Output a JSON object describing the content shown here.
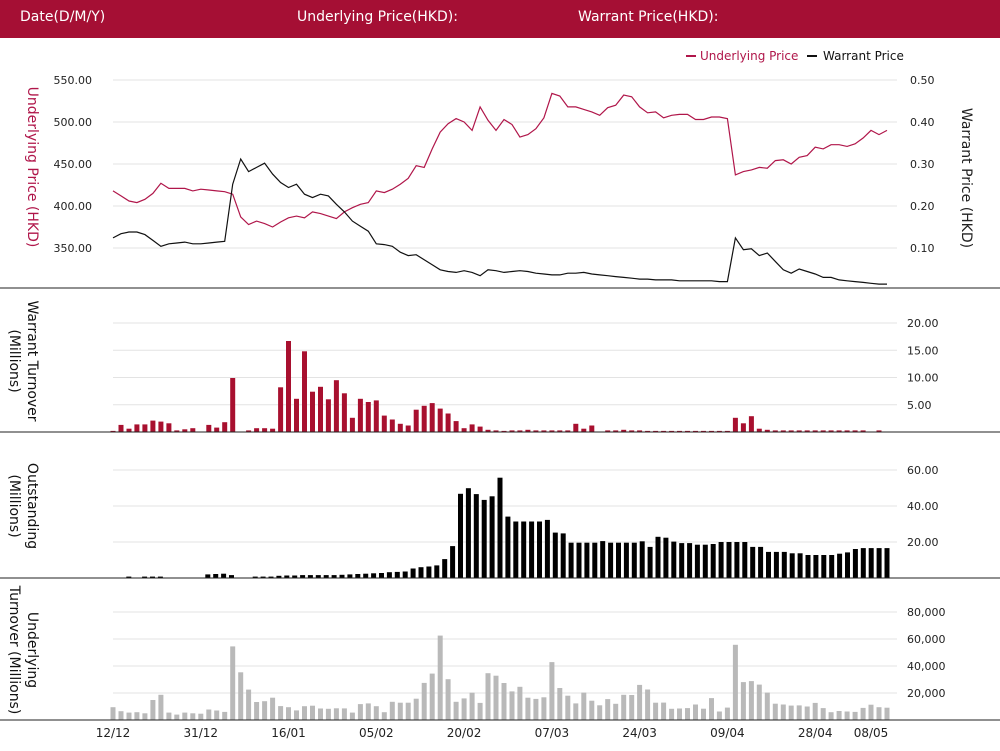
{
  "header": {
    "date_label": "Date(D/M/Y)",
    "underlying_label": "Underlying Price(HKD):",
    "warrant_label": "Warrant Price(HKD):"
  },
  "colors": {
    "header_bg": "#a50f34",
    "underlying": "#b0164a",
    "warrant": "#111111",
    "warrant_turnover_bar": "#a8102f",
    "outstanding_bar": "#000000",
    "underlying_turnover_bar": "#b9b9b9",
    "grid": "#e3e3e3"
  },
  "chart_data": [
    {
      "type": "line",
      "legend": [
        "Underlying Price",
        "Warrant Price"
      ],
      "legend_position": "top-right",
      "ylabel_left": "Underlying Price (HKD)",
      "ylabel_right": "Warrant  Price (HKD)",
      "y_left_ticks": [
        "550.00",
        "500.00",
        "450.00",
        "400.00",
        "350.00"
      ],
      "y_left_tick_values": [
        550,
        500,
        450,
        400,
        350
      ],
      "y_right_ticks": [
        "0.50",
        "0.40",
        "0.30",
        "0.20",
        "0.10"
      ],
      "y_right_tick_values": [
        0.5,
        0.4,
        0.3,
        0.2,
        0.1
      ],
      "ylim_left": [
        300,
        570
      ],
      "ylim_right": [
        0,
        0.54
      ],
      "grid": true,
      "series": [
        {
          "name": "Underlying Price",
          "axis": "left",
          "values": [
            418,
            412,
            406,
            404,
            408,
            415,
            427,
            421,
            421,
            421,
            418,
            420,
            419,
            418,
            417,
            414,
            387,
            378,
            382,
            379,
            375,
            381,
            386,
            388,
            386,
            393,
            391,
            388,
            385,
            393,
            398,
            402,
            404,
            418,
            416,
            420,
            426,
            433,
            448,
            446,
            468,
            488,
            498,
            504,
            500,
            490,
            518,
            502,
            490,
            503,
            497,
            482,
            485,
            492,
            505,
            534,
            531,
            518,
            518,
            515,
            512,
            508,
            517,
            520,
            532,
            530,
            518,
            511,
            512,
            505,
            508,
            509,
            509,
            503,
            503,
            506,
            506,
            504,
            437,
            441,
            443,
            446,
            445,
            454,
            455,
            450,
            458,
            460,
            470,
            468,
            473,
            473,
            471,
            474,
            481,
            490,
            485,
            490
          ]
        },
        {
          "name": "Warrant Price",
          "axis": "left",
          "values": [
            362,
            367,
            369,
            369,
            366,
            359,
            352,
            355,
            356,
            357,
            355,
            355,
            356,
            357,
            358,
            426,
            456,
            441,
            446,
            451,
            438,
            428,
            422,
            426,
            414,
            410,
            414,
            412,
            402,
            393,
            382,
            376,
            370,
            355,
            354,
            352,
            345,
            341,
            342,
            336,
            330,
            324,
            322,
            321,
            323,
            321,
            317,
            324,
            323,
            321,
            322,
            323,
            322,
            320,
            319,
            318,
            318,
            320,
            320,
            321,
            319,
            318,
            317,
            316,
            315,
            314,
            313,
            313,
            312,
            312,
            312,
            311,
            311,
            311,
            311,
            311,
            310,
            310,
            362,
            348,
            349,
            341,
            344,
            334,
            324,
            320,
            325,
            322,
            319,
            315,
            315,
            312,
            311,
            310,
            309,
            308,
            307,
            307
          ]
        }
      ]
    },
    {
      "type": "bar",
      "ylabel": "Warrant  Turnover (Millions)",
      "y_ticks": [
        "20.00",
        "15.00",
        "10.00",
        "5.00"
      ],
      "y_tick_values": [
        20,
        15,
        10,
        5
      ],
      "ylim": [
        0,
        24
      ],
      "grid": true,
      "values": [
        0.2,
        1.3,
        0.6,
        1.4,
        1.4,
        2.1,
        1.9,
        1.6,
        0.3,
        0.5,
        0.7,
        0.0,
        1.3,
        0.8,
        1.8,
        9.9,
        0.0,
        0.3,
        0.7,
        0.7,
        0.6,
        8.2,
        16.7,
        6.1,
        14.8,
        7.4,
        8.3,
        6.0,
        9.5,
        7.1,
        2.6,
        6.1,
        5.5,
        5.8,
        3.0,
        2.3,
        1.5,
        1.2,
        4.1,
        4.8,
        5.3,
        4.3,
        3.4,
        2.0,
        0.7,
        1.4,
        1.0,
        0.4,
        0.3,
        0.2,
        0.3,
        0.3,
        0.4,
        0.3,
        0.3,
        0.3,
        0.3,
        0.3,
        1.5,
        0.6,
        1.2,
        0.0,
        0.3,
        0.3,
        0.4,
        0.3,
        0.3,
        0.2,
        0.2,
        0.2,
        0.2,
        0.2,
        0.2,
        0.2,
        0.2,
        0.2,
        0.2,
        0.2,
        2.6,
        1.6,
        2.9,
        0.6,
        0.4,
        0.3,
        0.3,
        0.3,
        0.3,
        0.3,
        0.3,
        0.3,
        0.3,
        0.3,
        0.3,
        0.3,
        0.3,
        0.0,
        0.3,
        0.0
      ]
    },
    {
      "type": "bar",
      "ylabel": "Outstanding (Millions)",
      "y_ticks": [
        "60.00",
        "40.00",
        "20.00"
      ],
      "y_tick_values": [
        60,
        40,
        20
      ],
      "ylim": [
        0,
        66
      ],
      "grid": true,
      "values": [
        0,
        0,
        0.8,
        0.3,
        0.8,
        0.8,
        0.8,
        0,
        0,
        0,
        0,
        0,
        2.0,
        2.2,
        2.4,
        1.6,
        0,
        0,
        0.8,
        0.8,
        0.8,
        1.2,
        1.4,
        1.4,
        1.6,
        1.6,
        1.6,
        1.6,
        1.6,
        1.8,
        2.0,
        2.2,
        2.4,
        2.6,
        2.8,
        3.2,
        3.4,
        3.6,
        5.3,
        6.0,
        6.4,
        7.0,
        10.5,
        17.7,
        46.8,
        49.9,
        46.6,
        43.4,
        45.4,
        55.7,
        34.1,
        31.4,
        31.4,
        31.4,
        31.4,
        32.3,
        25.2,
        24.8,
        19.6,
        19.6,
        19.6,
        19.6,
        20.5,
        19.6,
        19.6,
        19.6,
        19.6,
        20.4,
        17.3,
        22.9,
        22.4,
        20.2,
        19.4,
        19.4,
        18.5,
        18.5,
        18.9,
        20.0,
        20.0,
        20.0,
        20.0,
        17.3,
        17.3,
        14.5,
        14.5,
        14.5,
        13.7,
        13.7,
        12.8,
        12.8,
        12.8,
        12.8,
        13.5,
        14.2,
        16.1,
        16.6,
        16.6,
        16.6,
        16.6
      ]
    },
    {
      "type": "bar",
      "ylabel": "Underlying Turnover (Millions)",
      "y_ticks": [
        "80,000",
        "60,000",
        "40,000",
        "20,000"
      ],
      "y_tick_values": [
        80000,
        60000,
        40000,
        20000
      ],
      "ylim": [
        0,
        95000
      ],
      "grid": true,
      "x_ticks": [
        "12/12",
        "31/12",
        "16/01",
        "05/02",
        "20/02",
        "07/03",
        "24/03",
        "09/04",
        "28/04",
        "08/05"
      ],
      "x_tick_positions": [
        0,
        11,
        22,
        33,
        44,
        55,
        66,
        77,
        88,
        95
      ],
      "values": [
        9500,
        6500,
        5500,
        5800,
        5000,
        14800,
        18700,
        5500,
        4000,
        5500,
        5000,
        4700,
        7800,
        7000,
        6000,
        54500,
        35300,
        22500,
        13300,
        13900,
        16500,
        10300,
        9500,
        7100,
        10200,
        10600,
        8500,
        8300,
        8700,
        8600,
        5500,
        11800,
        12300,
        10200,
        5800,
        13500,
        12800,
        12800,
        15800,
        27500,
        34400,
        62500,
        30200,
        13500,
        16000,
        20200,
        12700,
        34700,
        32800,
        27400,
        21200,
        24600,
        16500,
        15600,
        16800,
        42900,
        23700,
        18000,
        12300,
        20300,
        14300,
        10900,
        15500,
        12000,
        18700,
        18500,
        26000,
        22600,
        12800,
        12900,
        8300,
        8500,
        8800,
        11500,
        8400,
        16200,
        6300,
        9200,
        55700,
        28100,
        28800,
        26200,
        20300,
        12100,
        11500,
        10700,
        10800,
        10000,
        12700,
        8800,
        5800,
        6700,
        6300,
        6000,
        9000,
        11300,
        9500,
        9100
      ]
    }
  ]
}
